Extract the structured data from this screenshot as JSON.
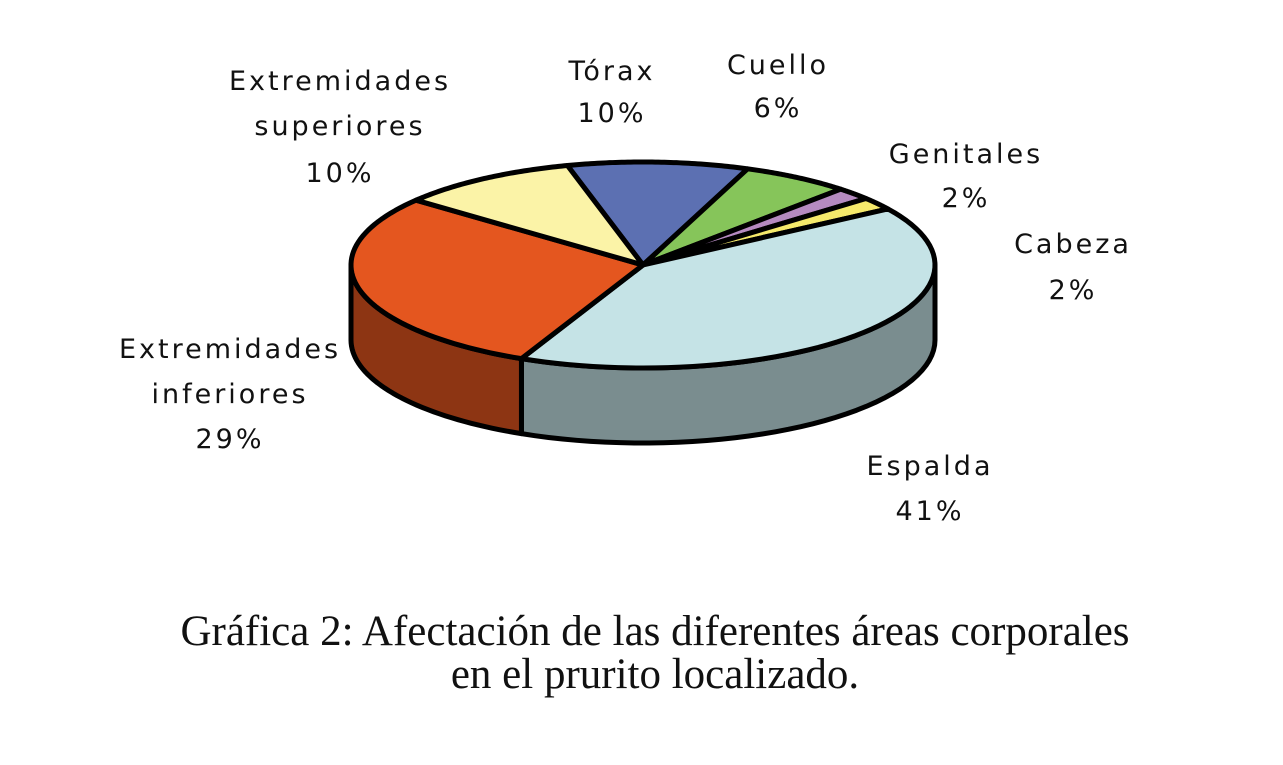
{
  "chart_data": {
    "type": "pie",
    "title": [
      "Gráfica 2: Afectación de las diferentes áreas corporales",
      "en el prurito localizado."
    ],
    "categories": [
      "Tórax",
      "Cuello",
      "Genitales",
      "Cabeza",
      "Espalda",
      "Extremidades inferiores",
      "Extremidades superiores"
    ],
    "values": [
      10,
      6,
      2,
      2,
      41,
      29,
      10
    ],
    "value_labels": [
      "10%",
      "6%",
      "2%",
      "2%",
      "41%",
      "29%",
      "10%"
    ],
    "colors": [
      "#5c70b2",
      "#86c55a",
      "#b58ac0",
      "#f5e96b",
      "#c5e3e6",
      "#e4561f",
      "#fbf3a7"
    ]
  }
}
